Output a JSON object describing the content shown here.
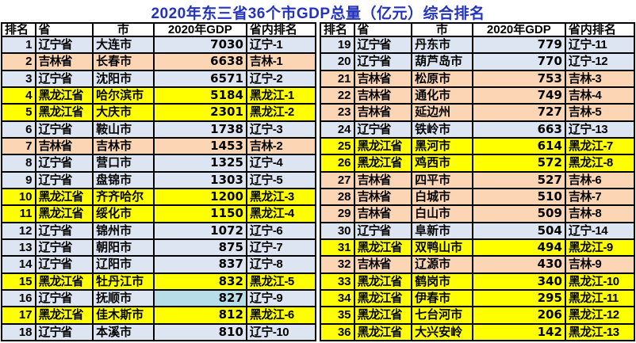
{
  "title": {
    "text": "2020年东三省36个市GDP总量（亿元）综合排名",
    "color": "#2433BE"
  },
  "table": {
    "headers": [
      "排名",
      "省",
      "市",
      "2020年GDP",
      "省内排名"
    ]
  },
  "colors": {
    "province_row_fill": {
      "辽宁省": "#DCE5F1",
      "吉林省": "#FCD5B5",
      "黑龙江省": "#FFFF00"
    },
    "header_fill": "#FFFFFF",
    "border": "#000000",
    "text": "#000000",
    "highlight_cell_fill": "#B7DDE8"
  },
  "special_cells": [
    {
      "rank": 16,
      "column": "gdp",
      "fill": "#B7DDE8"
    }
  ],
  "chart_data": {
    "type": "table",
    "title": "2020年东三省36个市GDP总量（亿元）综合排名",
    "columns": [
      "排名",
      "省",
      "市",
      "2020年GDP",
      "省内排名"
    ],
    "left_rows": [
      [
        1,
        "辽宁省",
        "大连市",
        7030,
        "辽宁-1"
      ],
      [
        2,
        "吉林省",
        "长春市",
        6638,
        "吉林-1"
      ],
      [
        3,
        "辽宁省",
        "沈阳市",
        6571,
        "辽宁-2"
      ],
      [
        4,
        "黑龙江省",
        "哈尔滨市",
        5184,
        "黑龙江-1"
      ],
      [
        5,
        "黑龙江省",
        "大庆市",
        2301,
        "黑龙江-2"
      ],
      [
        6,
        "辽宁省",
        "鞍山市",
        1738,
        "辽宁-3"
      ],
      [
        7,
        "吉林省",
        "吉林市",
        1453,
        "吉林-2"
      ],
      [
        8,
        "辽宁省",
        "营口市",
        1325,
        "辽宁-4"
      ],
      [
        9,
        "辽宁省",
        "盘锦市",
        1303,
        "辽宁-5"
      ],
      [
        10,
        "黑龙江省",
        "齐齐哈尔",
        1200,
        "黑龙江-3"
      ],
      [
        11,
        "黑龙江省",
        "绥化市",
        1150,
        "黑龙江-4"
      ],
      [
        12,
        "辽宁省",
        "锦州市",
        1072,
        "辽宁-6"
      ],
      [
        13,
        "辽宁省",
        "朝阳市",
        875,
        "辽宁-7"
      ],
      [
        14,
        "辽宁省",
        "辽阳市",
        837,
        "辽宁-8"
      ],
      [
        15,
        "黑龙江省",
        "牡丹江市",
        832,
        "黑龙江-5"
      ],
      [
        16,
        "辽宁省",
        "抚顺市",
        827,
        "辽宁-9"
      ],
      [
        17,
        "黑龙江省",
        "佳木斯市",
        812,
        "黑龙江-6"
      ],
      [
        18,
        "辽宁省",
        "本溪市",
        810,
        "辽宁-10"
      ]
    ],
    "right_rows": [
      [
        19,
        "辽宁省",
        "丹东市",
        779,
        "辽宁-11"
      ],
      [
        20,
        "辽宁省",
        "葫芦岛市",
        770,
        "辽宁-12"
      ],
      [
        21,
        "吉林省",
        "松原市",
        753,
        "吉林-3"
      ],
      [
        22,
        "吉林省",
        "通化市",
        749,
        "吉林-4"
      ],
      [
        23,
        "吉林省",
        "延边州",
        727,
        "吉林-5"
      ],
      [
        24,
        "辽宁省",
        "铁岭市",
        663,
        "辽宁-13"
      ],
      [
        25,
        "黑龙江省",
        "黑河市",
        614,
        "黑龙江-7"
      ],
      [
        26,
        "黑龙江省",
        "鸡西市",
        572,
        "黑龙江-8"
      ],
      [
        27,
        "吉林省",
        "四平市",
        527,
        "吉林-6"
      ],
      [
        28,
        "吉林省",
        "白城市",
        510,
        "吉林-7"
      ],
      [
        29,
        "吉林省",
        "白山市",
        509,
        "吉林-8"
      ],
      [
        30,
        "辽宁省",
        "阜新市",
        504,
        "辽宁-14"
      ],
      [
        31,
        "黑龙江省",
        "双鸭山市",
        494,
        "黑龙江-9"
      ],
      [
        32,
        "吉林省",
        "辽源市",
        430,
        "吉林-9"
      ],
      [
        33,
        "黑龙江省",
        "鹤岗市",
        340,
        "黑龙江-10"
      ],
      [
        34,
        "黑龙江省",
        "伊春市",
        295,
        "黑龙江-11"
      ],
      [
        35,
        "黑龙江省",
        "七台河市",
        206,
        "黑龙江-12"
      ],
      [
        36,
        "黑龙江省",
        "大兴安岭",
        142,
        "黑龙江-13"
      ]
    ]
  }
}
